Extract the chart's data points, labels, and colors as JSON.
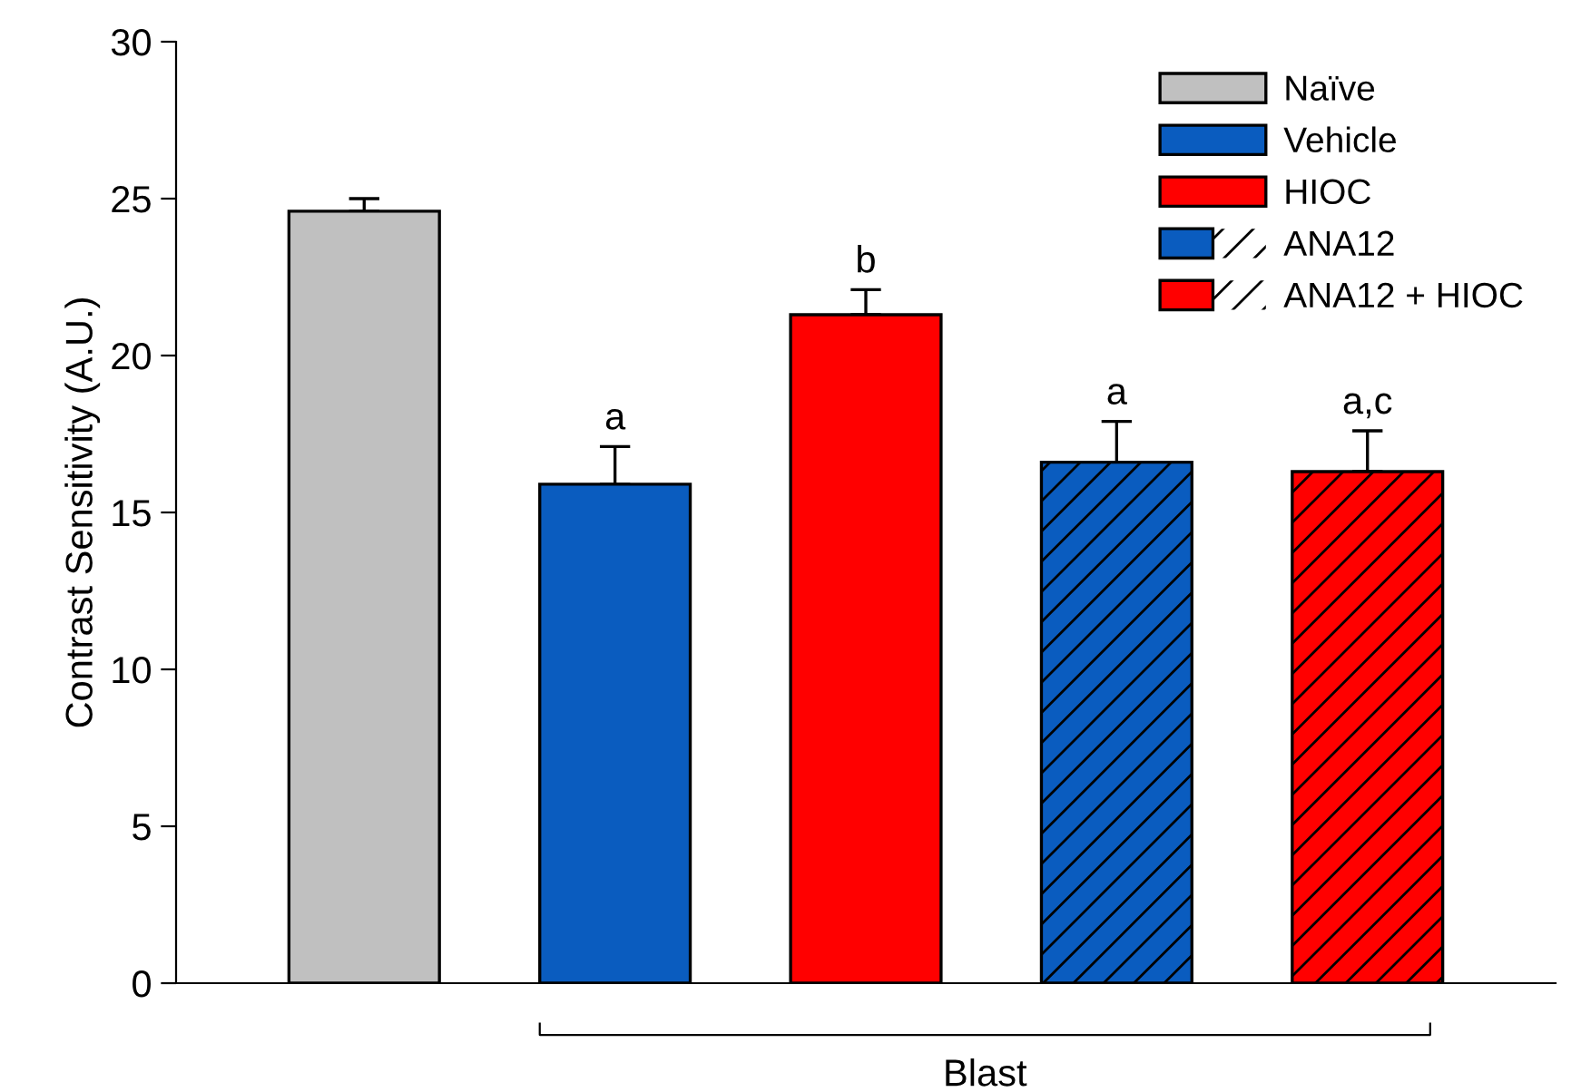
{
  "chart_data": {
    "type": "bar",
    "ylabel": "Contrast Sensitivity (A.U.)",
    "categories": [
      null,
      null,
      null,
      null,
      null
    ],
    "series": [
      {
        "name": "Naïve",
        "color": "#c0c0c0",
        "values": [
          24.6,
          null,
          null,
          null,
          null
        ],
        "errors": [
          [
            24.6,
            25.0
          ],
          null,
          null,
          null,
          null
        ]
      },
      {
        "name": "Vehicle",
        "color": "#0a5cbf",
        "values": [
          null,
          15.9,
          null,
          null,
          null
        ],
        "errors": [
          null,
          [
            15.9,
            17.1
          ],
          null,
          null,
          null
        ],
        "value_labels": [
          null,
          "a",
          null,
          null,
          null
        ]
      },
      {
        "name": "HIOC",
        "color": "#ff0000",
        "values": [
          null,
          null,
          21.3,
          null,
          null
        ],
        "errors": [
          null,
          null,
          [
            21.3,
            22.1
          ],
          null,
          null
        ],
        "value_labels": [
          null,
          null,
          "b",
          null,
          null
        ]
      },
      {
        "name": "ANA12",
        "color": "#0a5cbf",
        "values": [
          null,
          null,
          null,
          16.6,
          null
        ],
        "errors": [
          null,
          null,
          null,
          [
            16.6,
            17.9
          ],
          null
        ],
        "value_labels": [
          null,
          null,
          null,
          "a",
          null
        ]
      },
      {
        "name": "ANA12 + HIOC",
        "color": "#ff0000",
        "values": [
          null,
          null,
          null,
          null,
          16.3
        ],
        "errors": [
          null,
          null,
          null,
          null,
          [
            16.3,
            17.6
          ]
        ],
        "value_labels": [
          null,
          null,
          null,
          null,
          "a,c"
        ]
      }
    ],
    "annotations": [
      "Blast"
    ],
    "ylim": [
      0,
      30
    ],
    "yticks": [
      0,
      5,
      10,
      15,
      20,
      25,
      30
    ],
    "grid": false,
    "legend": "top right"
  }
}
